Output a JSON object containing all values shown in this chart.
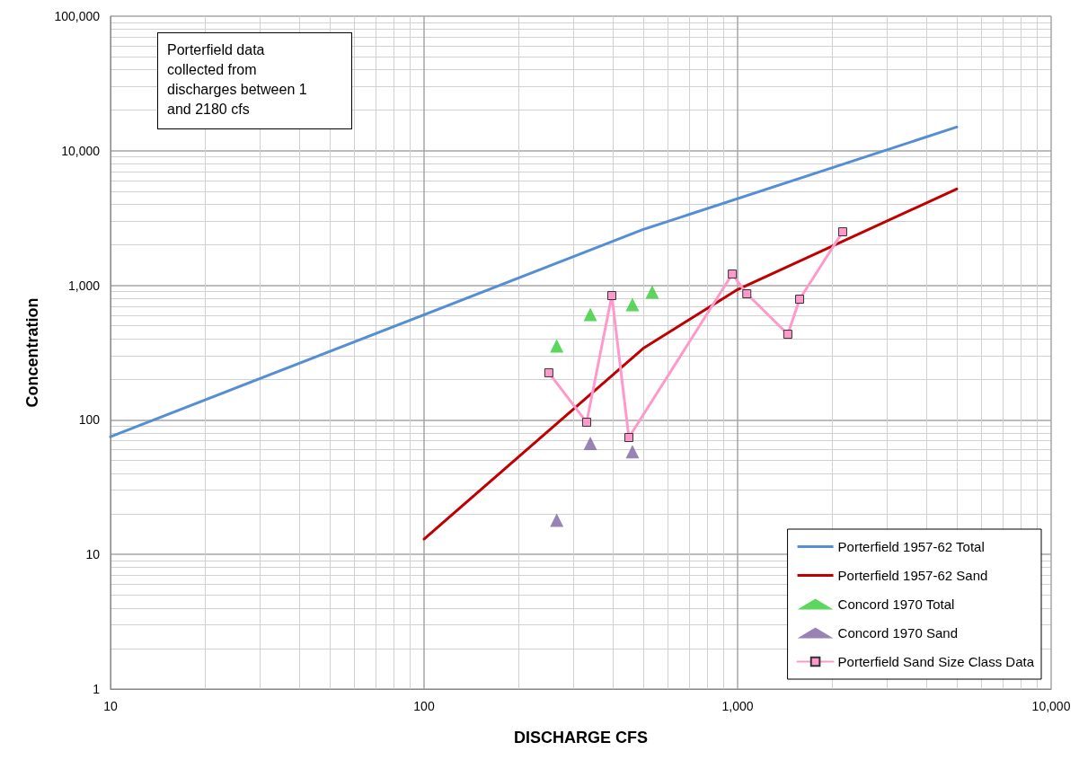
{
  "chart_data": {
    "type": "line",
    "xlabel": "DISCHARGE CFS",
    "ylabel": "Concentration",
    "log": "xy",
    "grid": true,
    "legend": "bottom right",
    "xlim": [
      10,
      10000
    ],
    "ylim": [
      1,
      100000
    ],
    "xticks": [
      10,
      100,
      {
        "value": 1000,
        "label": "1,000"
      },
      {
        "value": 10000,
        "label": "10,000"
      }
    ],
    "yticks": [
      1,
      10,
      100,
      {
        "value": 1000,
        "label": "1,000"
      },
      {
        "value": 10000,
        "label": "10,000"
      },
      {
        "value": 100000,
        "label": "100,000"
      }
    ],
    "annotations": [
      "Porterfield data collected from discharges between 1 and 2180 cfs"
    ],
    "series": [
      {
        "name": "Porterfield 1957-62 Total",
        "color": "#558ed5",
        "marker": "none",
        "x": [
          10,
          500,
          5000
        ],
        "values": [
          75,
          2600,
          15000
        ]
      },
      {
        "name": "Porterfield 1957-62 Sand",
        "color": "#c00000",
        "marker": "none",
        "x": [
          100,
          500,
          1000,
          5000
        ],
        "values": [
          13,
          340,
          930,
          5200
        ]
      },
      {
        "name": "Concord 1970 Total",
        "type": "scatter",
        "color": "#33cc33",
        "marker": "triangle",
        "x": [
          265,
          339,
          462,
          534
        ],
        "values": [
          355,
          608,
          720,
          892
        ]
      },
      {
        "name": "Concord 1970 Sand",
        "type": "scatter",
        "color": "#8064a2",
        "marker": "triangle",
        "x": [
          265,
          339,
          462
        ],
        "values": [
          18,
          67,
          58
        ]
      },
      {
        "name": "Porterfield Sand Size Class Data",
        "color": "#ff99cc",
        "marker": "square",
        "x": [
          250,
          330,
          397,
          450,
          962,
          1070,
          1446,
          1577,
          2163
        ],
        "values": [
          224,
          96,
          839,
          74,
          1213,
          865,
          433,
          789,
          2500
        ]
      }
    ]
  }
}
